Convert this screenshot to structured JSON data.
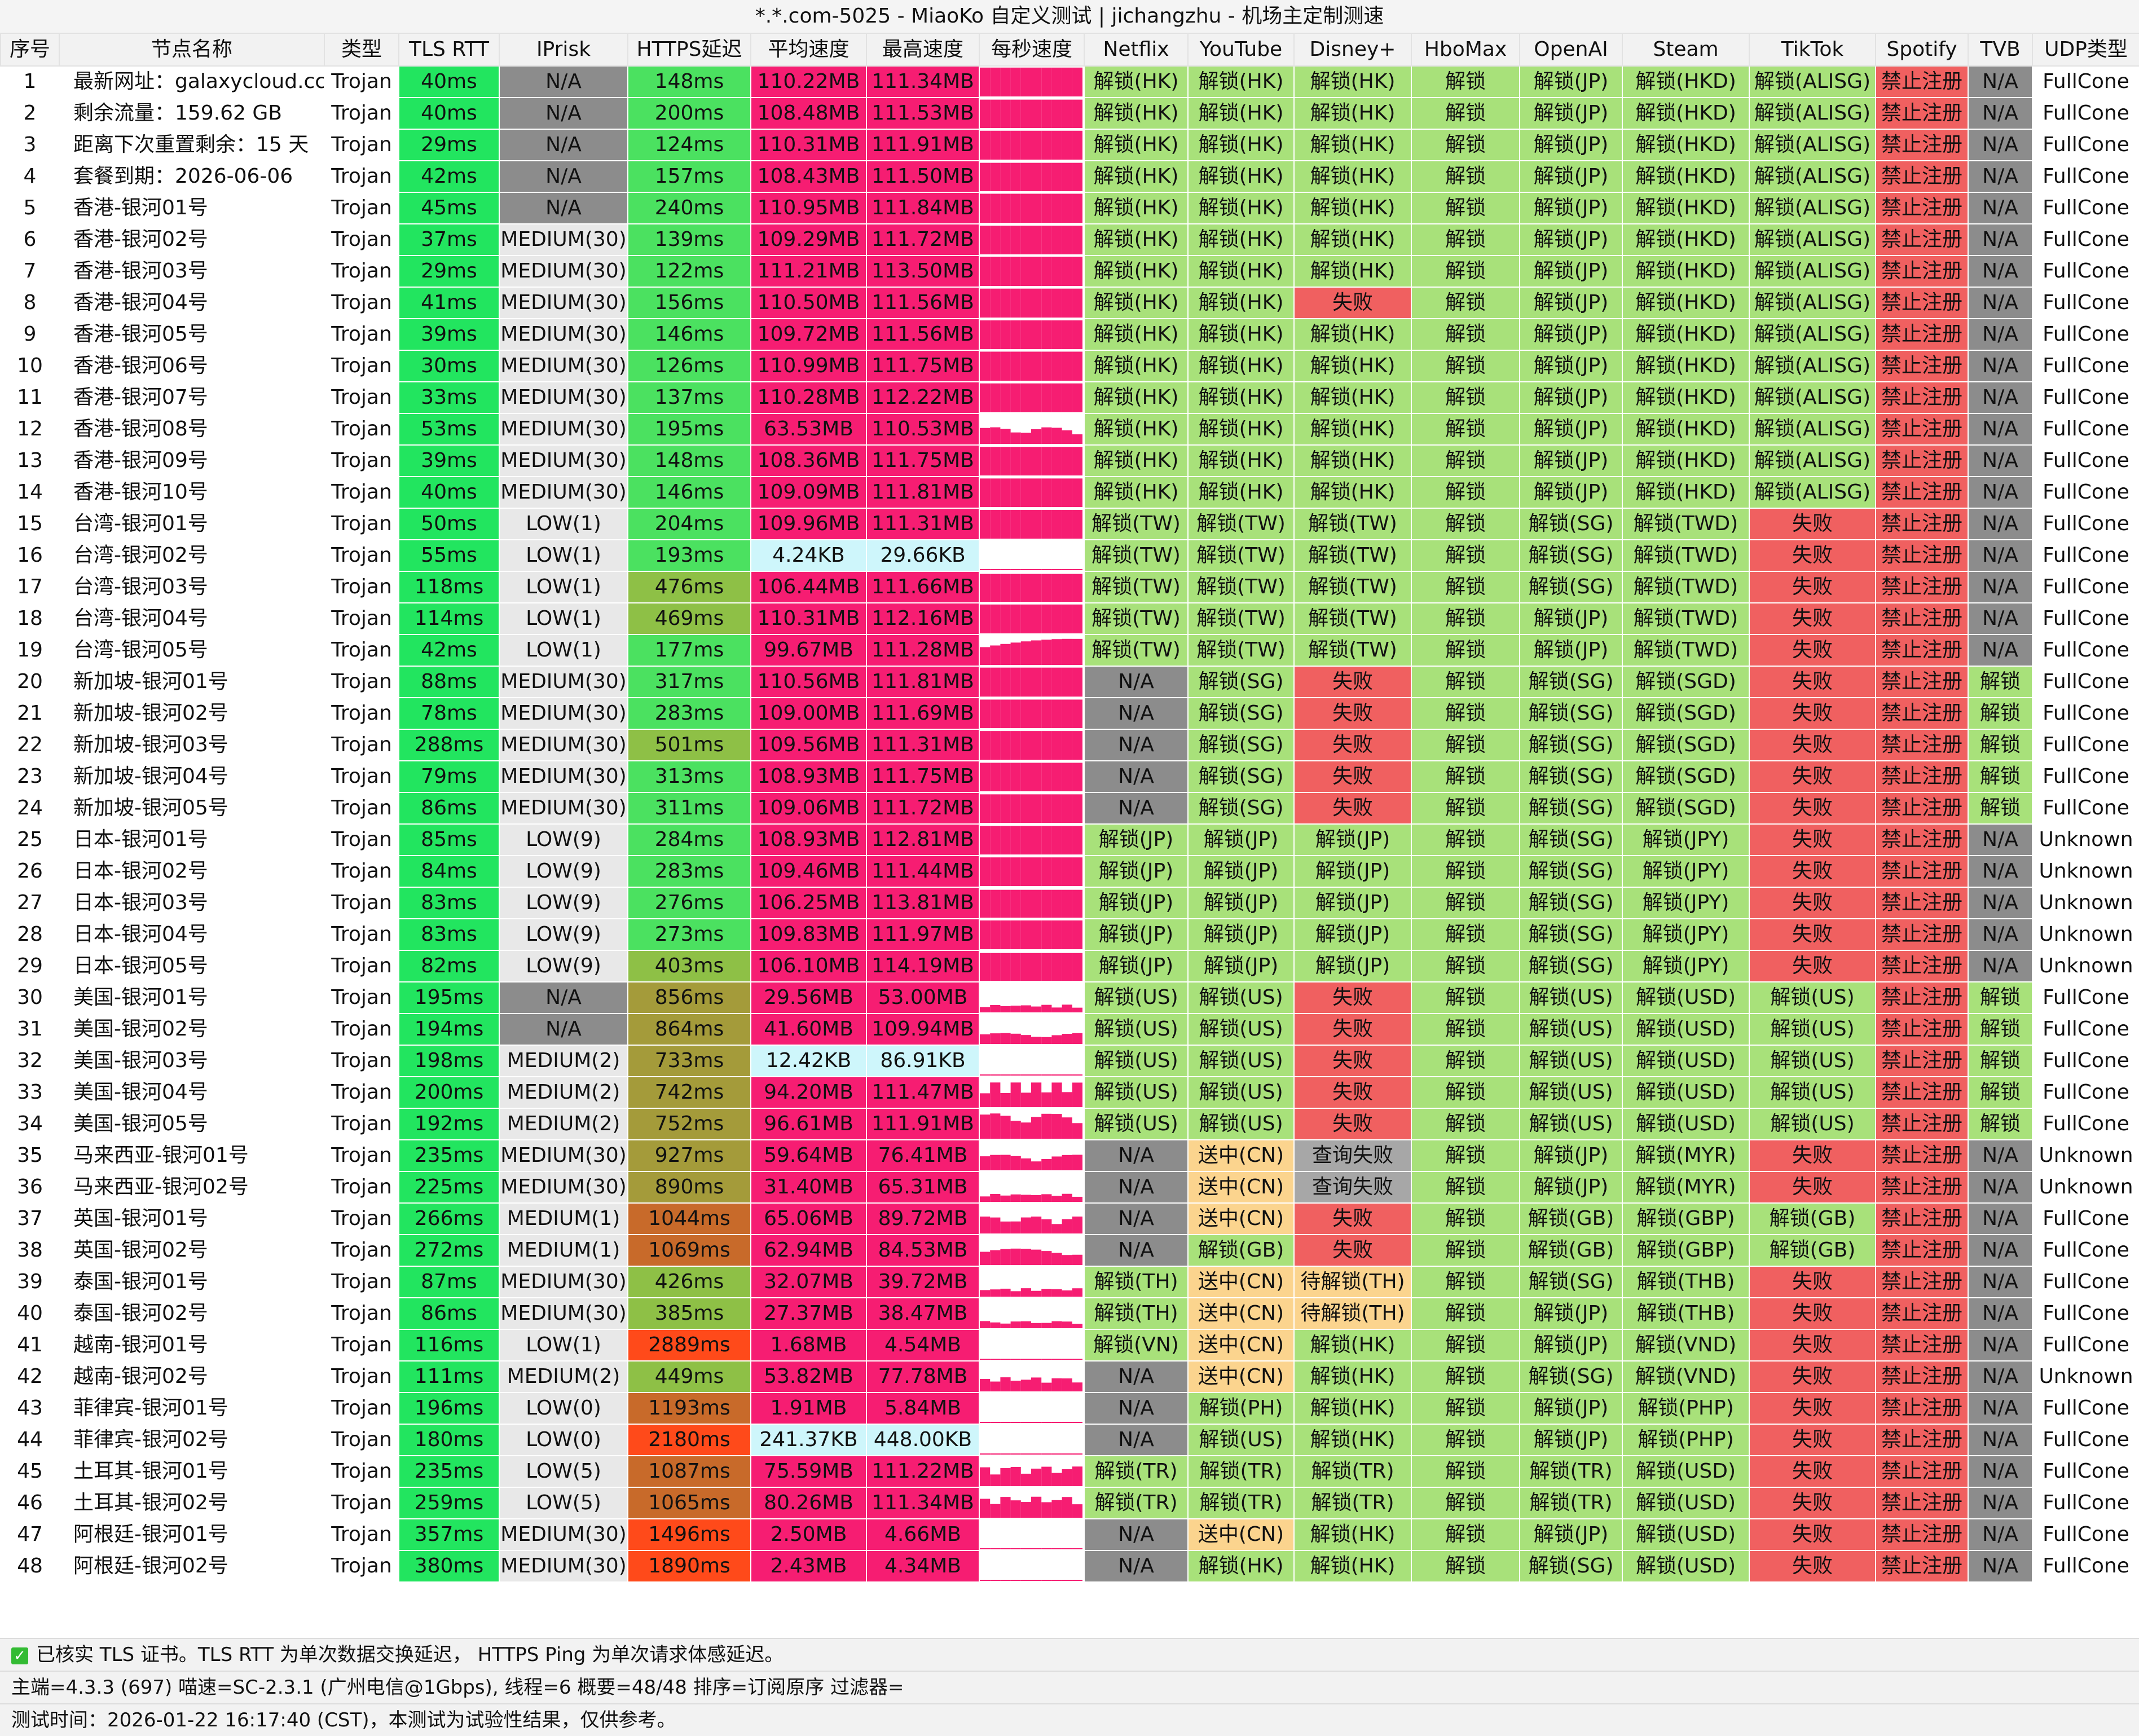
{
  "window": {
    "title": "*.*.com-5025 - MiaoKo 自定义测试 | jichangzhu - 机场主定制测速"
  },
  "columns": [
    "序号",
    "节点名称",
    "类型",
    "TLS RTT",
    "IPrisk",
    "HTTPS延迟",
    "平均速度",
    "最高速度",
    "每秒速度",
    "Netflix",
    "YouTube",
    "Disney+",
    "HboMax",
    "OpenAI",
    "Steam",
    "TikTok",
    "Spotify",
    "TVB",
    "UDP类型"
  ],
  "rows": [
    [
      "1",
      "最新网址：galaxycloud.cc",
      "Trojan",
      "40ms",
      "N/A",
      "148ms",
      "110.22MB",
      "111.34MB",
      "",
      "解锁(HK)",
      "解锁(HK)",
      "解锁(HK)",
      "解锁",
      "解锁(JP)",
      "解锁(HKD)",
      "解锁(ALISG)",
      "禁止注册",
      "N/A",
      "FullCone"
    ],
    [
      "2",
      "剩余流量：159.62 GB",
      "Trojan",
      "40ms",
      "N/A",
      "200ms",
      "108.48MB",
      "111.53MB",
      "",
      "解锁(HK)",
      "解锁(HK)",
      "解锁(HK)",
      "解锁",
      "解锁(JP)",
      "解锁(HKD)",
      "解锁(ALISG)",
      "禁止注册",
      "N/A",
      "FullCone"
    ],
    [
      "3",
      "距离下次重置剩余：15 天",
      "Trojan",
      "29ms",
      "N/A",
      "124ms",
      "110.31MB",
      "111.91MB",
      "",
      "解锁(HK)",
      "解锁(HK)",
      "解锁(HK)",
      "解锁",
      "解锁(JP)",
      "解锁(HKD)",
      "解锁(ALISG)",
      "禁止注册",
      "N/A",
      "FullCone"
    ],
    [
      "4",
      "套餐到期：2026-06-06",
      "Trojan",
      "42ms",
      "N/A",
      "157ms",
      "108.43MB",
      "111.50MB",
      "",
      "解锁(HK)",
      "解锁(HK)",
      "解锁(HK)",
      "解锁",
      "解锁(JP)",
      "解锁(HKD)",
      "解锁(ALISG)",
      "禁止注册",
      "N/A",
      "FullCone"
    ],
    [
      "5",
      "香港-银河01号",
      "Trojan",
      "45ms",
      "N/A",
      "240ms",
      "110.95MB",
      "111.84MB",
      "",
      "解锁(HK)",
      "解锁(HK)",
      "解锁(HK)",
      "解锁",
      "解锁(JP)",
      "解锁(HKD)",
      "解锁(ALISG)",
      "禁止注册",
      "N/A",
      "FullCone"
    ],
    [
      "6",
      "香港-银河02号",
      "Trojan",
      "37ms",
      "MEDIUM(30)",
      "139ms",
      "109.29MB",
      "111.72MB",
      "",
      "解锁(HK)",
      "解锁(HK)",
      "解锁(HK)",
      "解锁",
      "解锁(JP)",
      "解锁(HKD)",
      "解锁(ALISG)",
      "禁止注册",
      "N/A",
      "FullCone"
    ],
    [
      "7",
      "香港-银河03号",
      "Trojan",
      "29ms",
      "MEDIUM(30)",
      "122ms",
      "111.21MB",
      "113.50MB",
      "",
      "解锁(HK)",
      "解锁(HK)",
      "解锁(HK)",
      "解锁",
      "解锁(JP)",
      "解锁(HKD)",
      "解锁(ALISG)",
      "禁止注册",
      "N/A",
      "FullCone"
    ],
    [
      "8",
      "香港-银河04号",
      "Trojan",
      "41ms",
      "MEDIUM(30)",
      "156ms",
      "110.50MB",
      "111.56MB",
      "",
      "解锁(HK)",
      "解锁(HK)",
      "失败",
      "解锁",
      "解锁(JP)",
      "解锁(HKD)",
      "解锁(ALISG)",
      "禁止注册",
      "N/A",
      "FullCone"
    ],
    [
      "9",
      "香港-银河05号",
      "Trojan",
      "39ms",
      "MEDIUM(30)",
      "146ms",
      "109.72MB",
      "111.56MB",
      "",
      "解锁(HK)",
      "解锁(HK)",
      "解锁(HK)",
      "解锁",
      "解锁(JP)",
      "解锁(HKD)",
      "解锁(ALISG)",
      "禁止注册",
      "N/A",
      "FullCone"
    ],
    [
      "10",
      "香港-银河06号",
      "Trojan",
      "30ms",
      "MEDIUM(30)",
      "126ms",
      "110.99MB",
      "111.75MB",
      "",
      "解锁(HK)",
      "解锁(HK)",
      "解锁(HK)",
      "解锁",
      "解锁(JP)",
      "解锁(HKD)",
      "解锁(ALISG)",
      "禁止注册",
      "N/A",
      "FullCone"
    ],
    [
      "11",
      "香港-银河07号",
      "Trojan",
      "33ms",
      "MEDIUM(30)",
      "137ms",
      "110.28MB",
      "112.22MB",
      "",
      "解锁(HK)",
      "解锁(HK)",
      "解锁(HK)",
      "解锁",
      "解锁(JP)",
      "解锁(HKD)",
      "解锁(ALISG)",
      "禁止注册",
      "N/A",
      "FullCone"
    ],
    [
      "12",
      "香港-银河08号",
      "Trojan",
      "53ms",
      "MEDIUM(30)",
      "195ms",
      "63.53MB",
      "110.53MB",
      "",
      "解锁(HK)",
      "解锁(HK)",
      "解锁(HK)",
      "解锁",
      "解锁(JP)",
      "解锁(HKD)",
      "解锁(ALISG)",
      "禁止注册",
      "N/A",
      "FullCone"
    ],
    [
      "13",
      "香港-银河09号",
      "Trojan",
      "39ms",
      "MEDIUM(30)",
      "148ms",
      "108.36MB",
      "111.75MB",
      "",
      "解锁(HK)",
      "解锁(HK)",
      "解锁(HK)",
      "解锁",
      "解锁(JP)",
      "解锁(HKD)",
      "解锁(ALISG)",
      "禁止注册",
      "N/A",
      "FullCone"
    ],
    [
      "14",
      "香港-银河10号",
      "Trojan",
      "40ms",
      "MEDIUM(30)",
      "146ms",
      "109.09MB",
      "111.81MB",
      "",
      "解锁(HK)",
      "解锁(HK)",
      "解锁(HK)",
      "解锁",
      "解锁(JP)",
      "解锁(HKD)",
      "解锁(ALISG)",
      "禁止注册",
      "N/A",
      "FullCone"
    ],
    [
      "15",
      "台湾-银河01号",
      "Trojan",
      "50ms",
      "LOW(1)",
      "204ms",
      "109.96MB",
      "111.31MB",
      "",
      "解锁(TW)",
      "解锁(TW)",
      "解锁(TW)",
      "解锁",
      "解锁(SG)",
      "解锁(TWD)",
      "失败",
      "禁止注册",
      "N/A",
      "FullCone"
    ],
    [
      "16",
      "台湾-银河02号",
      "Trojan",
      "55ms",
      "LOW(1)",
      "193ms",
      "4.24KB",
      "29.66KB",
      "",
      "解锁(TW)",
      "解锁(TW)",
      "解锁(TW)",
      "解锁",
      "解锁(SG)",
      "解锁(TWD)",
      "失败",
      "禁止注册",
      "N/A",
      "FullCone"
    ],
    [
      "17",
      "台湾-银河03号",
      "Trojan",
      "118ms",
      "LOW(1)",
      "476ms",
      "106.44MB",
      "111.66MB",
      "",
      "解锁(TW)",
      "解锁(TW)",
      "解锁(TW)",
      "解锁",
      "解锁(SG)",
      "解锁(TWD)",
      "失败",
      "禁止注册",
      "N/A",
      "FullCone"
    ],
    [
      "18",
      "台湾-银河04号",
      "Trojan",
      "114ms",
      "LOW(1)",
      "469ms",
      "110.31MB",
      "112.16MB",
      "",
      "解锁(TW)",
      "解锁(TW)",
      "解锁(TW)",
      "解锁",
      "解锁(JP)",
      "解锁(TWD)",
      "失败",
      "禁止注册",
      "N/A",
      "FullCone"
    ],
    [
      "19",
      "台湾-银河05号",
      "Trojan",
      "42ms",
      "LOW(1)",
      "177ms",
      "99.67MB",
      "111.28MB",
      "",
      "解锁(TW)",
      "解锁(TW)",
      "解锁(TW)",
      "解锁",
      "解锁(JP)",
      "解锁(TWD)",
      "失败",
      "禁止注册",
      "N/A",
      "FullCone"
    ],
    [
      "20",
      "新加坡-银河01号",
      "Trojan",
      "88ms",
      "MEDIUM(30)",
      "317ms",
      "110.56MB",
      "111.81MB",
      "",
      "N/A",
      "解锁(SG)",
      "失败",
      "解锁",
      "解锁(SG)",
      "解锁(SGD)",
      "失败",
      "禁止注册",
      "解锁",
      "FullCone"
    ],
    [
      "21",
      "新加坡-银河02号",
      "Trojan",
      "78ms",
      "MEDIUM(30)",
      "283ms",
      "109.00MB",
      "111.69MB",
      "",
      "N/A",
      "解锁(SG)",
      "失败",
      "解锁",
      "解锁(SG)",
      "解锁(SGD)",
      "失败",
      "禁止注册",
      "解锁",
      "FullCone"
    ],
    [
      "22",
      "新加坡-银河03号",
      "Trojan",
      "288ms",
      "MEDIUM(30)",
      "501ms",
      "109.56MB",
      "111.31MB",
      "",
      "N/A",
      "解锁(SG)",
      "失败",
      "解锁",
      "解锁(SG)",
      "解锁(SGD)",
      "失败",
      "禁止注册",
      "解锁",
      "FullCone"
    ],
    [
      "23",
      "新加坡-银河04号",
      "Trojan",
      "79ms",
      "MEDIUM(30)",
      "313ms",
      "108.93MB",
      "111.75MB",
      "",
      "N/A",
      "解锁(SG)",
      "失败",
      "解锁",
      "解锁(SG)",
      "解锁(SGD)",
      "失败",
      "禁止注册",
      "解锁",
      "FullCone"
    ],
    [
      "24",
      "新加坡-银河05号",
      "Trojan",
      "86ms",
      "MEDIUM(30)",
      "311ms",
      "109.06MB",
      "111.72MB",
      "",
      "N/A",
      "解锁(SG)",
      "失败",
      "解锁",
      "解锁(SG)",
      "解锁(SGD)",
      "失败",
      "禁止注册",
      "解锁",
      "FullCone"
    ],
    [
      "25",
      "日本-银河01号",
      "Trojan",
      "85ms",
      "LOW(9)",
      "284ms",
      "108.93MB",
      "112.81MB",
      "",
      "解锁(JP)",
      "解锁(JP)",
      "解锁(JP)",
      "解锁",
      "解锁(SG)",
      "解锁(JPY)",
      "失败",
      "禁止注册",
      "N/A",
      "Unknown"
    ],
    [
      "26",
      "日本-银河02号",
      "Trojan",
      "84ms",
      "LOW(9)",
      "283ms",
      "109.46MB",
      "111.44MB",
      "",
      "解锁(JP)",
      "解锁(JP)",
      "解锁(JP)",
      "解锁",
      "解锁(SG)",
      "解锁(JPY)",
      "失败",
      "禁止注册",
      "N/A",
      "Unknown"
    ],
    [
      "27",
      "日本-银河03号",
      "Trojan",
      "83ms",
      "LOW(9)",
      "276ms",
      "106.25MB",
      "113.81MB",
      "",
      "解锁(JP)",
      "解锁(JP)",
      "解锁(JP)",
      "解锁",
      "解锁(SG)",
      "解锁(JPY)",
      "失败",
      "禁止注册",
      "N/A",
      "Unknown"
    ],
    [
      "28",
      "日本-银河04号",
      "Trojan",
      "83ms",
      "LOW(9)",
      "273ms",
      "109.83MB",
      "111.97MB",
      "",
      "解锁(JP)",
      "解锁(JP)",
      "解锁(JP)",
      "解锁",
      "解锁(SG)",
      "解锁(JPY)",
      "失败",
      "禁止注册",
      "N/A",
      "Unknown"
    ],
    [
      "29",
      "日本-银河05号",
      "Trojan",
      "82ms",
      "LOW(9)",
      "403ms",
      "106.10MB",
      "114.19MB",
      "",
      "解锁(JP)",
      "解锁(JP)",
      "解锁(JP)",
      "解锁",
      "解锁(SG)",
      "解锁(JPY)",
      "失败",
      "禁止注册",
      "N/A",
      "Unknown"
    ],
    [
      "30",
      "美国-银河01号",
      "Trojan",
      "195ms",
      "N/A",
      "856ms",
      "29.56MB",
      "53.00MB",
      "",
      "解锁(US)",
      "解锁(US)",
      "失败",
      "解锁",
      "解锁(US)",
      "解锁(USD)",
      "解锁(US)",
      "禁止注册",
      "解锁",
      "FullCone"
    ],
    [
      "31",
      "美国-银河02号",
      "Trojan",
      "194ms",
      "N/A",
      "864ms",
      "41.60MB",
      "109.94MB",
      "",
      "解锁(US)",
      "解锁(US)",
      "失败",
      "解锁",
      "解锁(US)",
      "解锁(USD)",
      "解锁(US)",
      "禁止注册",
      "解锁",
      "FullCone"
    ],
    [
      "32",
      "美国-银河03号",
      "Trojan",
      "198ms",
      "MEDIUM(2)",
      "733ms",
      "12.42KB",
      "86.91KB",
      "",
      "解锁(US)",
      "解锁(US)",
      "失败",
      "解锁",
      "解锁(US)",
      "解锁(USD)",
      "解锁(US)",
      "禁止注册",
      "解锁",
      "FullCone"
    ],
    [
      "33",
      "美国-银河04号",
      "Trojan",
      "200ms",
      "MEDIUM(2)",
      "742ms",
      "94.20MB",
      "111.47MB",
      "",
      "解锁(US)",
      "解锁(US)",
      "失败",
      "解锁",
      "解锁(US)",
      "解锁(USD)",
      "解锁(US)",
      "禁止注册",
      "解锁",
      "FullCone"
    ],
    [
      "34",
      "美国-银河05号",
      "Trojan",
      "192ms",
      "MEDIUM(2)",
      "752ms",
      "96.61MB",
      "111.91MB",
      "",
      "解锁(US)",
      "解锁(US)",
      "失败",
      "解锁",
      "解锁(US)",
      "解锁(USD)",
      "解锁(US)",
      "禁止注册",
      "解锁",
      "FullCone"
    ],
    [
      "35",
      "马来西亚-银河01号",
      "Trojan",
      "235ms",
      "MEDIUM(30)",
      "927ms",
      "59.64MB",
      "76.41MB",
      "",
      "N/A",
      "送中(CN)",
      "查询失败",
      "解锁",
      "解锁(JP)",
      "解锁(MYR)",
      "失败",
      "禁止注册",
      "N/A",
      "Unknown"
    ],
    [
      "36",
      "马来西亚-银河02号",
      "Trojan",
      "225ms",
      "MEDIUM(30)",
      "890ms",
      "31.40MB",
      "65.31MB",
      "",
      "N/A",
      "送中(CN)",
      "查询失败",
      "解锁",
      "解锁(JP)",
      "解锁(MYR)",
      "失败",
      "禁止注册",
      "N/A",
      "Unknown"
    ],
    [
      "37",
      "英国-银河01号",
      "Trojan",
      "266ms",
      "MEDIUM(1)",
      "1044ms",
      "65.06MB",
      "89.72MB",
      "",
      "N/A",
      "送中(CN)",
      "失败",
      "解锁",
      "解锁(GB)",
      "解锁(GBP)",
      "解锁(GB)",
      "禁止注册",
      "N/A",
      "FullCone"
    ],
    [
      "38",
      "英国-银河02号",
      "Trojan",
      "272ms",
      "MEDIUM(1)",
      "1069ms",
      "62.94MB",
      "84.53MB",
      "",
      "N/A",
      "解锁(GB)",
      "失败",
      "解锁",
      "解锁(GB)",
      "解锁(GBP)",
      "解锁(GB)",
      "禁止注册",
      "N/A",
      "FullCone"
    ],
    [
      "39",
      "泰国-银河01号",
      "Trojan",
      "87ms",
      "MEDIUM(30)",
      "426ms",
      "32.07MB",
      "39.72MB",
      "",
      "解锁(TH)",
      "送中(CN)",
      "待解锁(TH)",
      "解锁",
      "解锁(SG)",
      "解锁(THB)",
      "失败",
      "禁止注册",
      "N/A",
      "FullCone"
    ],
    [
      "40",
      "泰国-银河02号",
      "Trojan",
      "86ms",
      "MEDIUM(30)",
      "385ms",
      "27.37MB",
      "38.47MB",
      "",
      "解锁(TH)",
      "送中(CN)",
      "待解锁(TH)",
      "解锁",
      "解锁(JP)",
      "解锁(THB)",
      "失败",
      "禁止注册",
      "N/A",
      "FullCone"
    ],
    [
      "41",
      "越南-银河01号",
      "Trojan",
      "116ms",
      "LOW(1)",
      "2889ms",
      "1.68MB",
      "4.54MB",
      "",
      "解锁(VN)",
      "送中(CN)",
      "解锁(HK)",
      "解锁",
      "解锁(JP)",
      "解锁(VND)",
      "失败",
      "禁止注册",
      "N/A",
      "FullCone"
    ],
    [
      "42",
      "越南-银河02号",
      "Trojan",
      "111ms",
      "MEDIUM(2)",
      "449ms",
      "53.82MB",
      "77.78MB",
      "",
      "N/A",
      "送中(CN)",
      "解锁(HK)",
      "解锁",
      "解锁(SG)",
      "解锁(VND)",
      "失败",
      "禁止注册",
      "N/A",
      "Unknown"
    ],
    [
      "43",
      "菲律宾-银河01号",
      "Trojan",
      "196ms",
      "LOW(0)",
      "1193ms",
      "1.91MB",
      "5.84MB",
      "",
      "N/A",
      "解锁(PH)",
      "解锁(HK)",
      "解锁",
      "解锁(JP)",
      "解锁(PHP)",
      "失败",
      "禁止注册",
      "N/A",
      "FullCone"
    ],
    [
      "44",
      "菲律宾-银河02号",
      "Trojan",
      "180ms",
      "LOW(0)",
      "2180ms",
      "241.37KB",
      "448.00KB",
      "",
      "N/A",
      "解锁(US)",
      "解锁(HK)",
      "解锁",
      "解锁(JP)",
      "解锁(PHP)",
      "失败",
      "禁止注册",
      "N/A",
      "FullCone"
    ],
    [
      "45",
      "土耳其-银河01号",
      "Trojan",
      "235ms",
      "LOW(5)",
      "1087ms",
      "75.59MB",
      "111.22MB",
      "",
      "解锁(TR)",
      "解锁(TR)",
      "解锁(TR)",
      "解锁",
      "解锁(TR)",
      "解锁(USD)",
      "失败",
      "禁止注册",
      "N/A",
      "FullCone"
    ],
    [
      "46",
      "土耳其-银河02号",
      "Trojan",
      "259ms",
      "LOW(5)",
      "1065ms",
      "80.26MB",
      "111.34MB",
      "",
      "解锁(TR)",
      "解锁(TR)",
      "解锁(TR)",
      "解锁",
      "解锁(TR)",
      "解锁(USD)",
      "失败",
      "禁止注册",
      "N/A",
      "FullCone"
    ],
    [
      "47",
      "阿根廷-银河01号",
      "Trojan",
      "357ms",
      "MEDIUM(30)",
      "1496ms",
      "2.50MB",
      "4.66MB",
      "",
      "N/A",
      "送中(CN)",
      "解锁(HK)",
      "解锁",
      "解锁(JP)",
      "解锁(USD)",
      "失败",
      "禁止注册",
      "N/A",
      "FullCone"
    ],
    [
      "48",
      "阿根廷-银河02号",
      "Trojan",
      "380ms",
      "MEDIUM(30)",
      "1890ms",
      "2.43MB",
      "4.34MB",
      "",
      "N/A",
      "解锁(HK)",
      "解锁(HK)",
      "解锁",
      "解锁(SG)",
      "解锁(USD)",
      "失败",
      "禁止注册",
      "N/A",
      "FullCone"
    ]
  ],
  "footer": {
    "line1": "已核实 TLS 证书。TLS RTT 为单次数据交换延迟， HTTPS Ping 为单次请求体感延迟。",
    "line2": "主端=4.3.3 (697) 喵速=SC-2.3.1 (广州电信@1Gbps), 线程=6 概要=48/48 排序=订阅原序 过滤器=",
    "line3": "测试时间：2026-01-22 16:17:40 (CST)，本测试为试验性结果，仅供参考。"
  },
  "colors": {
    "speed": "#f61d72",
    "unlock": "#a8e17a",
    "fail": "#f06060",
    "na": "#8c8c8c",
    "tls": "#22e55f"
  }
}
